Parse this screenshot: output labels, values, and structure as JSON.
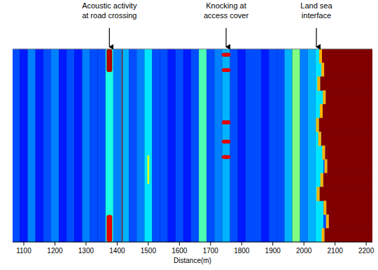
{
  "chart_data": {
    "type": "heatmap",
    "x_label": "Distance(m)",
    "xlim": [
      1064,
      2220
    ],
    "xticks": [
      1100,
      1200,
      1300,
      1400,
      1500,
      1600,
      1700,
      1800,
      1900,
      2000,
      2100,
      2200
    ],
    "tlim": [
      0,
      100
    ],
    "color_range": [
      0,
      10
    ],
    "tick_labels": "x",
    "columns": {
      "x": [
        1075,
        1100,
        1125,
        1150,
        1175,
        1200,
        1225,
        1250,
        1275,
        1300,
        1325,
        1350,
        1375,
        1400,
        1425,
        1450,
        1475,
        1500,
        1525,
        1550,
        1575,
        1600,
        1625,
        1650,
        1675,
        1700,
        1725,
        1750,
        1775,
        1800,
        1825,
        1850,
        1875,
        1900,
        1925,
        1950,
        1975,
        2000,
        2025,
        2050,
        2075,
        2100,
        2125,
        2150,
        2175,
        2200
      ],
      "values": [
        2,
        1.5,
        2.5,
        1.5,
        2,
        2.5,
        1.5,
        2,
        1.5,
        2.5,
        2,
        2,
        4,
        2.5,
        3,
        2,
        2.5,
        3.5,
        2,
        2,
        1.5,
        2,
        1.5,
        2,
        4.5,
        2,
        2.5,
        3,
        2,
        1.5,
        2,
        2,
        1.5,
        2,
        2,
        3,
        5,
        2.5,
        3,
        3.5,
        2,
        2,
        2,
        2,
        2,
        2
      ]
    },
    "events": [
      {
        "x": 1375,
        "t": [
          0,
          12
        ],
        "span": 18,
        "value": 9.5
      },
      {
        "x": 1375,
        "t": [
          86,
          100
        ],
        "span": 18,
        "value": 9
      },
      {
        "x": 1416,
        "t": [
          0,
          100
        ],
        "span": 3,
        "value": 10
      },
      {
        "x": 1500,
        "t": [
          55,
          70
        ],
        "span": 6,
        "value": 6
      },
      {
        "x": 1750,
        "t": [
          2,
          4
        ],
        "span": 28,
        "value": 9
      },
      {
        "x": 1750,
        "t": [
          10,
          12
        ],
        "span": 28,
        "value": 9
      },
      {
        "x": 1750,
        "t": [
          37,
          39
        ],
        "span": 28,
        "value": 9
      },
      {
        "x": 1750,
        "t": [
          47,
          49
        ],
        "span": 28,
        "value": 9
      },
      {
        "x": 1750,
        "t": [
          55,
          57
        ],
        "span": 28,
        "value": 9
      }
    ],
    "sea": {
      "value": 10,
      "edge": [
        2058,
        2065,
        2052,
        2070,
        2060,
        2048,
        2055,
        2068,
        2075,
        2062,
        2050,
        2072,
        2080,
        2066
      ]
    },
    "annotations": [
      {
        "text": [
          "Acoustic activity",
          "at road crossing"
        ],
        "x": 1375
      },
      {
        "text": [
          "Knocking at",
          "access cover"
        ],
        "x": 1750
      },
      {
        "text": [
          "Land sea",
          "interface"
        ],
        "x": 2040
      }
    ]
  }
}
